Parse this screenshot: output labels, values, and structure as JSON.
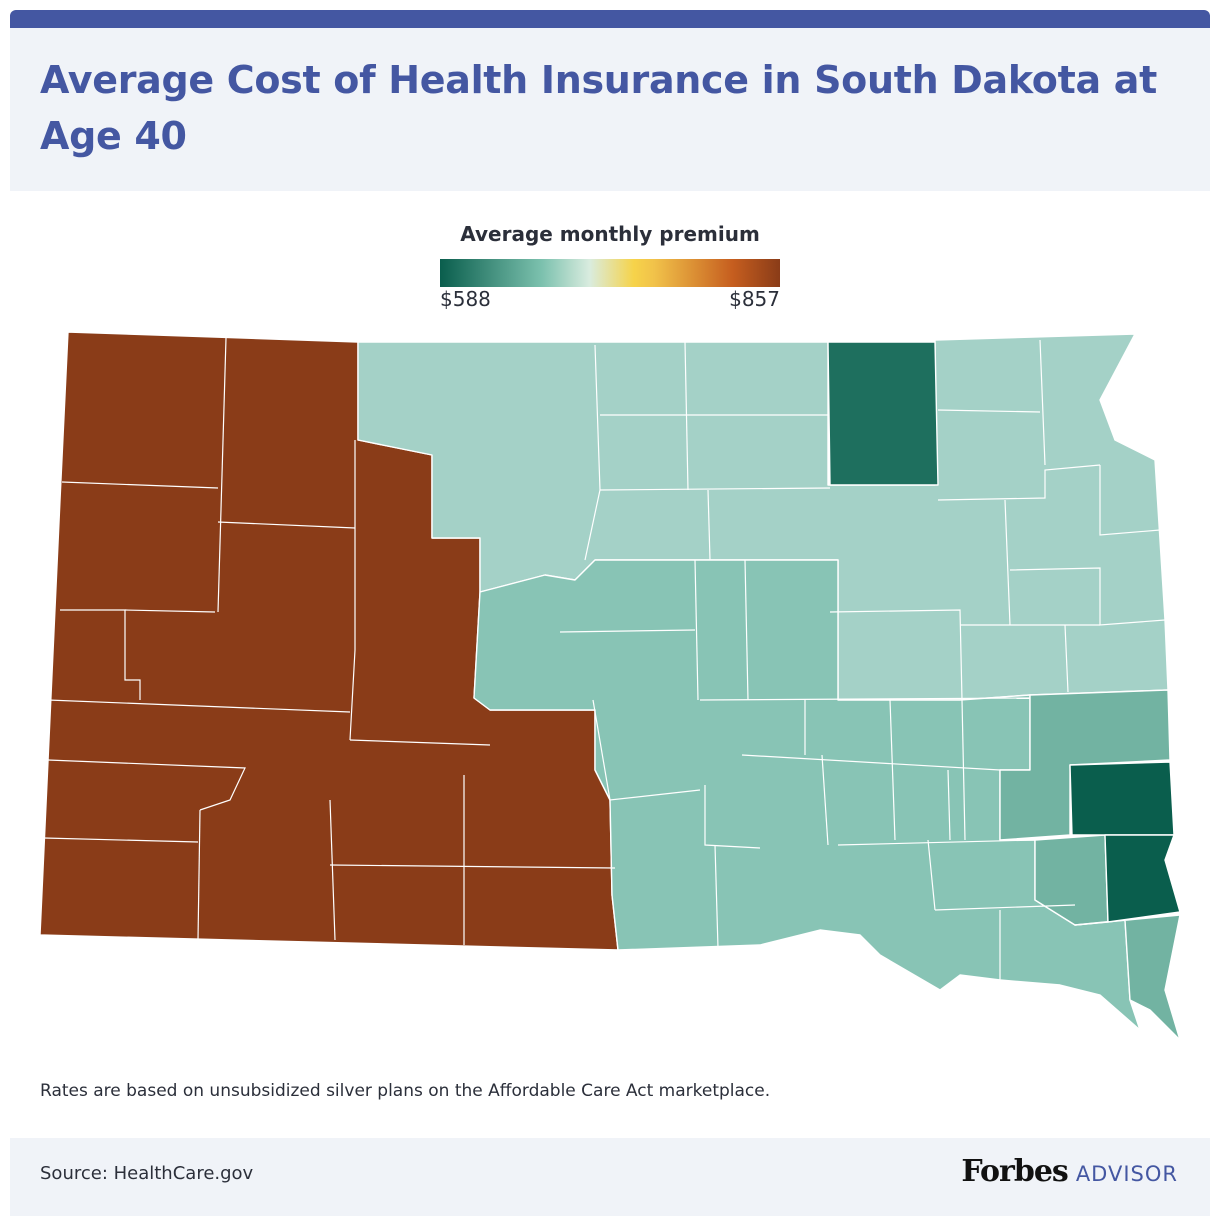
{
  "title": "Average Cost of Health Insurance in South Dakota at Age 40",
  "legend": {
    "title": "Average monthly premium",
    "min_label": "$588",
    "max_label": "$857",
    "min_value": 588,
    "max_value": 857
  },
  "colors": {
    "brand_blue": "#4457a2",
    "high": "#8a3c18",
    "low": "#0a5e4d",
    "light_teal": "#a4d1c7",
    "mid_teal": "#88c4b5",
    "med_teal": "#72b3a2",
    "dark_teal": "#1e6f5e",
    "darkest_teal": "#0a5e4d"
  },
  "note": "Rates are based on unsubsidized silver plans on the Affordable Care Act marketplace.",
  "footer": {
    "source": "Source: HealthCare.gov",
    "brand_name": "Forbes",
    "brand_suffix": "ADVISOR"
  }
}
